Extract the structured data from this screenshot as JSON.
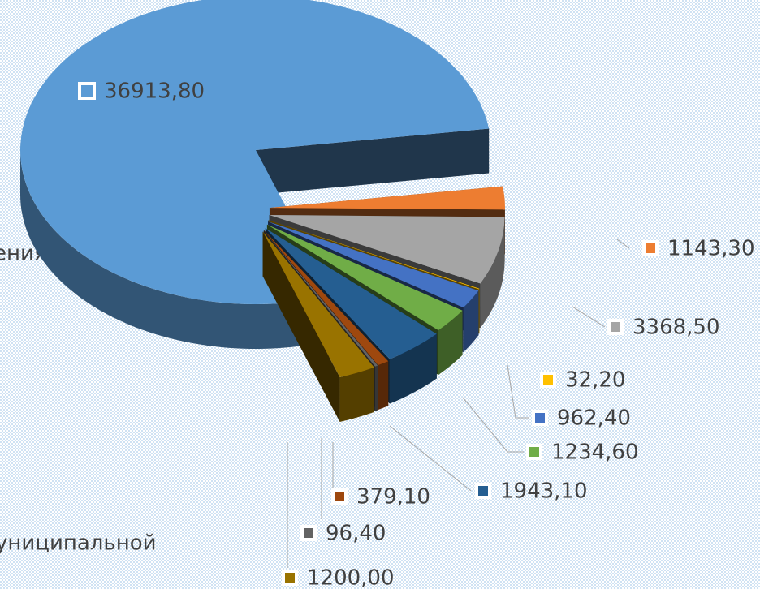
{
  "chart_data": {
    "type": "pie3d",
    "values": [
      36913.8,
      1143.3,
      3368.5,
      32.2,
      962.4,
      1234.6,
      1943.1,
      379.1,
      96.4,
      1200
    ],
    "value_labels": [
      "36913,80",
      "1143,30",
      "3368,50",
      "32,20",
      "962,40",
      "1234,60",
      "1943,10",
      "379,10",
      "96,40",
      "1200,00"
    ],
    "colors": [
      "#5b9bd5",
      "#ed7d31",
      "#a5a5a5",
      "#ffc000",
      "#4472c4",
      "#70ad47",
      "#255e91",
      "#9e480e",
      "#636363",
      "#997300"
    ],
    "annotations": [
      "ения",
      "униципальной"
    ]
  }
}
